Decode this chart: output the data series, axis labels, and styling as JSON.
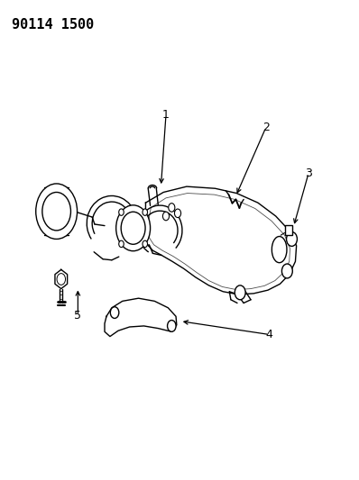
{
  "title": "90114 1500",
  "title_fontsize": 11,
  "title_fontweight": "bold",
  "background_color": "#ffffff",
  "line_color": "#000000"
}
